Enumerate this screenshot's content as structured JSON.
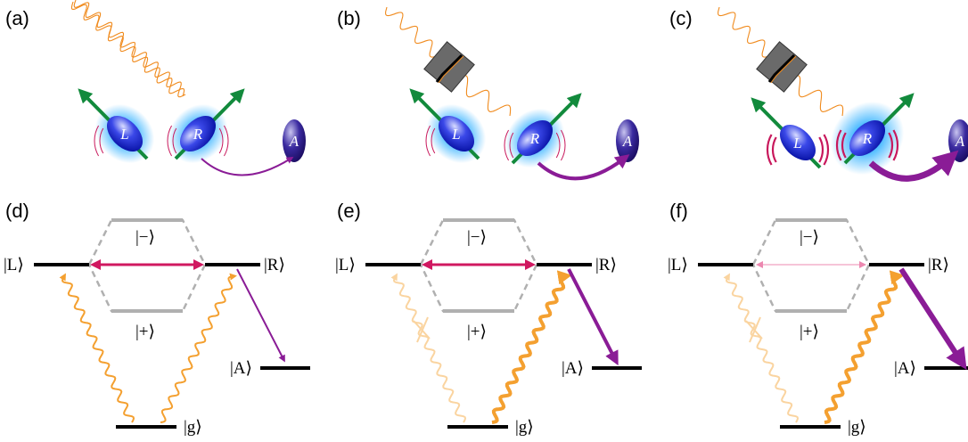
{
  "top_panels": [
    {
      "label": "(a)",
      "atoms": {
        "left": "L",
        "right": "R",
        "acceptor": "A"
      }
    },
    {
      "label": "(b)",
      "atoms": {
        "left": "L",
        "right": "R",
        "acceptor": "A"
      }
    },
    {
      "label": "(c)",
      "atoms": {
        "left": "L",
        "right": "R",
        "acceptor": "A"
      }
    }
  ],
  "level_panels": [
    {
      "label": "(d)",
      "states": {
        "left": "|L⟩",
        "right": "|R⟩",
        "minus": "|−⟩",
        "plus": "|+⟩",
        "acceptor": "|A⟩",
        "ground": "|g⟩"
      }
    },
    {
      "label": "(e)",
      "states": {
        "left": "|L⟩",
        "right": "|R⟩",
        "minus": "|−⟩",
        "plus": "|+⟩",
        "acceptor": "|A⟩",
        "ground": "|g⟩"
      }
    },
    {
      "label": "(f)",
      "states": {
        "left": "|L⟩",
        "right": "|R⟩",
        "minus": "|−⟩",
        "plus": "|+⟩",
        "acceptor": "|A⟩",
        "ground": "|g⟩"
      }
    }
  ]
}
